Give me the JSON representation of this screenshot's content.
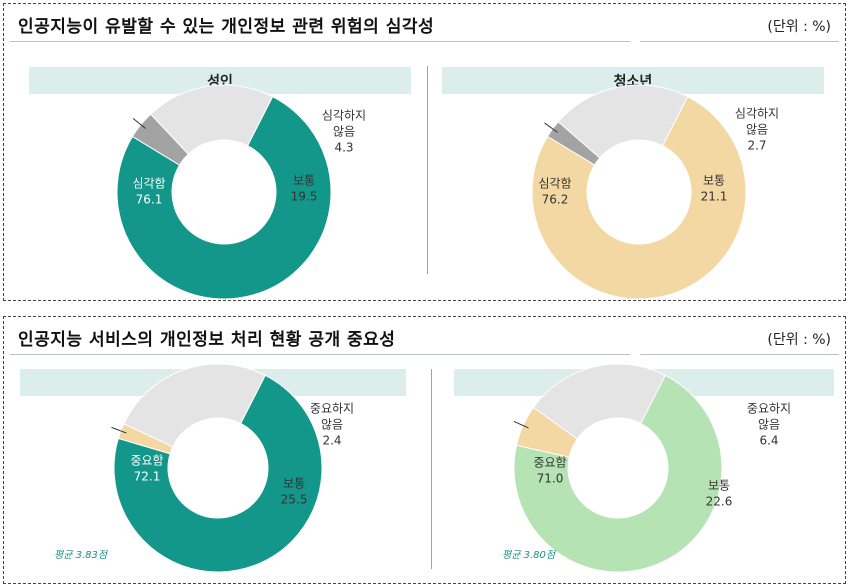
{
  "panels": [
    {
      "title": "인공지능이 유발할 수 있는 개인정보 관련 위험의 심각성",
      "unit": "(단위 : %)"
    },
    {
      "title": "인공지능 서비스의 개인정보 처리 현황 공개 중요성",
      "unit": "(단위 : %)"
    }
  ],
  "chart_data": [
    {
      "type": "pie",
      "title": "성인",
      "series": [
        {
          "label": "심각함",
          "value": 76.1,
          "color": "#13978a"
        },
        {
          "label": "보통",
          "value": 19.5,
          "color": "#e4e4e4"
        },
        {
          "label": "심각하지 않음",
          "value": 4.3,
          "color": "#a3a3a3"
        }
      ]
    },
    {
      "type": "pie",
      "title": "청소년",
      "series": [
        {
          "label": "심각함",
          "value": 76.2,
          "color": "#f4d8a3"
        },
        {
          "label": "보통",
          "value": 21.1,
          "color": "#e4e4e4"
        },
        {
          "label": "심각하지 않음",
          "value": 2.7,
          "color": "#a3a3a3"
        }
      ]
    },
    {
      "type": "pie",
      "title": "성인",
      "average": "평균 3.83점",
      "series": [
        {
          "label": "중요함",
          "value": 72.1,
          "color": "#13978a"
        },
        {
          "label": "보통",
          "value": 25.5,
          "color": "#e4e4e4"
        },
        {
          "label": "중요하지 않음",
          "value": 2.4,
          "color": "#f4d8a3"
        }
      ]
    },
    {
      "type": "pie",
      "title": "청소년",
      "average": "평균 3.80점",
      "series": [
        {
          "label": "중요함",
          "value": 71.0,
          "color": "#b5e3b3"
        },
        {
          "label": "보통",
          "value": 22.6,
          "color": "#e4e4e4"
        },
        {
          "label": "중요하지 않음",
          "value": 6.4,
          "color": "#f4d8a3"
        }
      ]
    }
  ]
}
